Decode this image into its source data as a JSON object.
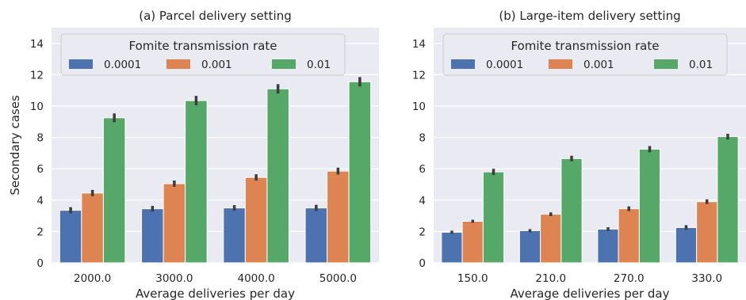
{
  "chart_data": [
    {
      "type": "bar",
      "title": "(a) Parcel delivery setting",
      "xlabel": "Average deliveries per day",
      "ylabel": "Secondary cases",
      "categories": [
        "2000.0",
        "3000.0",
        "4000.0",
        "5000.0"
      ],
      "ylim": [
        0,
        15
      ],
      "yticks": [
        "0",
        "2",
        "4",
        "6",
        "8",
        "10",
        "12",
        "14"
      ],
      "legend_title": "Fomite transmission rate",
      "legend_placement": "top",
      "grid": true,
      "series": [
        {
          "name": "0.0001",
          "color": "#4c72b0",
          "values": [
            3.35,
            3.45,
            3.5,
            3.5
          ],
          "err": [
            0.2,
            0.18,
            0.18,
            0.2
          ]
        },
        {
          "name": "0.001",
          "color": "#dd8452",
          "values": [
            4.45,
            5.05,
            5.45,
            5.85
          ],
          "err": [
            0.2,
            0.2,
            0.2,
            0.22
          ]
        },
        {
          "name": "0.01",
          "color": "#55a868",
          "values": [
            9.25,
            10.35,
            11.1,
            11.55
          ],
          "err": [
            0.28,
            0.3,
            0.3,
            0.3
          ]
        }
      ]
    },
    {
      "type": "bar",
      "title": "(b) Large-item delivery setting",
      "xlabel": "Average deliveries per day",
      "ylabel": "",
      "categories": [
        "150.0",
        "210.0",
        "270.0",
        "330.0"
      ],
      "ylim": [
        0,
        15
      ],
      "yticks": [
        "0",
        "2",
        "4",
        "6",
        "8",
        "10",
        "12",
        "14"
      ],
      "legend_title": "Fomite transmission rate",
      "legend_placement": "top",
      "grid": true,
      "series": [
        {
          "name": "0.0001",
          "color": "#4c72b0",
          "values": [
            1.95,
            2.05,
            2.15,
            2.25
          ],
          "err": [
            0.1,
            0.1,
            0.12,
            0.15
          ]
        },
        {
          "name": "0.001",
          "color": "#dd8452",
          "values": [
            2.65,
            3.1,
            3.45,
            3.9
          ],
          "err": [
            0.1,
            0.12,
            0.15,
            0.15
          ]
        },
        {
          "name": "0.01",
          "color": "#55a868",
          "values": [
            5.8,
            6.65,
            7.25,
            8.05
          ],
          "err": [
            0.2,
            0.18,
            0.2,
            0.18
          ]
        }
      ]
    }
  ]
}
